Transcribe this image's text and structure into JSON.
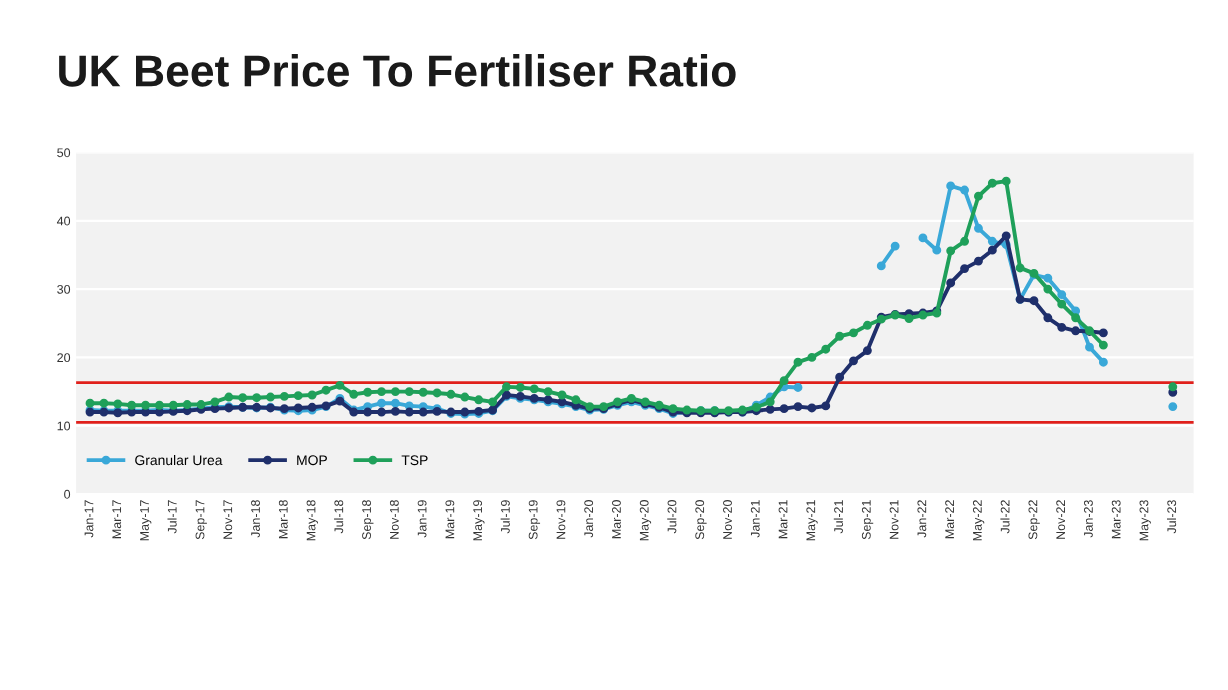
{
  "chart_data": {
    "type": "line",
    "title": "UK Beet Price To Fertiliser Ratio",
    "categories": [
      "Jan-17",
      null,
      "Mar-17",
      null,
      "May-17",
      null,
      "Jul-17",
      null,
      "Sep-17",
      null,
      "Nov-17",
      null,
      "Jan-18",
      null,
      "Mar-18",
      null,
      "May-18",
      null,
      "Jul-18",
      null,
      "Sep-18",
      null,
      "Nov-18",
      null,
      "Jan-19",
      null,
      "Mar-19",
      null,
      "May-19",
      null,
      "Jul-19",
      null,
      "Sep-19",
      null,
      "Nov-19",
      null,
      "Jan-20",
      null,
      "Mar-20",
      null,
      "May-20",
      null,
      "Jul-20",
      null,
      "Sep-20",
      null,
      "Nov-20",
      null,
      "Jan-21",
      null,
      "Mar-21",
      null,
      "May-21",
      null,
      "Jul-21",
      null,
      "Sep-21",
      null,
      "Nov-21",
      null,
      "Jan-22",
      null,
      "Mar-22",
      null,
      "May-22",
      null,
      "Jul-22",
      null,
      "Sep-22",
      null,
      "Nov-22",
      null,
      "Jan-23",
      null,
      "Mar-23",
      null,
      "May-23",
      null,
      "Jul-23"
    ],
    "series": [
      {
        "name": "Granular Urea",
        "color": "#3aa8d8",
        "values": [
          12.3,
          12.2,
          12.2,
          12.2,
          12.2,
          12.3,
          12.2,
          12.3,
          12.5,
          12.7,
          12.8,
          12.7,
          12.6,
          12.7,
          12.3,
          12.2,
          12.3,
          12.8,
          14.0,
          12.3,
          12.8,
          13.3,
          13.3,
          12.9,
          12.8,
          12.5,
          11.8,
          11.7,
          11.8,
          12.2,
          14.3,
          14.0,
          13.8,
          13.5,
          13.2,
          12.8,
          12.3,
          12.4,
          13.0,
          13.5,
          13.0,
          12.5,
          11.8,
          12.0,
          12.2,
          12.2,
          12.0,
          12.0,
          13.0,
          14.2,
          15.7,
          15.6,
          null,
          null,
          null,
          null,
          null,
          33.4,
          36.3,
          null,
          37.5,
          35.7,
          45.1,
          44.5,
          38.9,
          37.0,
          36.5,
          28.5,
          32.1,
          31.6,
          29.2,
          26.8,
          21.5,
          19.3,
          null,
          null,
          null,
          null,
          12.8
        ]
      },
      {
        "name": "MOP",
        "color": "#1f2f6b",
        "values": [
          12.0,
          12.0,
          11.9,
          12.0,
          12.0,
          12.0,
          12.1,
          12.2,
          12.4,
          12.5,
          12.6,
          12.7,
          12.7,
          12.6,
          12.5,
          12.6,
          12.7,
          12.9,
          13.6,
          12.0,
          12.0,
          12.0,
          12.1,
          12.0,
          12.0,
          12.1,
          12.0,
          12.0,
          12.1,
          12.3,
          14.5,
          14.3,
          14.0,
          13.8,
          13.5,
          13.0,
          12.5,
          12.5,
          13.2,
          13.8,
          13.2,
          12.7,
          12.0,
          11.9,
          11.9,
          11.9,
          12.0,
          12.0,
          12.2,
          12.4,
          12.5,
          12.8,
          12.6,
          12.9,
          17.1,
          19.5,
          21.0,
          25.9,
          26.3,
          26.4,
          26.5,
          26.8,
          30.9,
          33.0,
          34.1,
          35.7,
          37.8,
          28.5,
          28.3,
          25.8,
          24.4,
          23.9,
          23.8,
          23.6,
          null,
          null,
          null,
          null,
          14.9
        ]
      },
      {
        "name": "TSP",
        "color": "#1fa05a",
        "values": [
          13.3,
          13.3,
          13.2,
          13.0,
          13.0,
          13.0,
          13.0,
          13.1,
          13.1,
          13.5,
          14.2,
          14.1,
          14.1,
          14.2,
          14.3,
          14.4,
          14.5,
          15.2,
          15.9,
          14.6,
          14.9,
          15.0,
          15.0,
          15.0,
          14.9,
          14.8,
          14.6,
          14.2,
          13.8,
          13.5,
          15.7,
          15.6,
          15.4,
          15.0,
          14.5,
          13.8,
          12.8,
          12.8,
          13.5,
          14.0,
          13.5,
          13.0,
          12.5,
          12.3,
          12.2,
          12.2,
          12.2,
          12.3,
          12.7,
          13.5,
          16.6,
          19.3,
          20.0,
          21.2,
          23.1,
          23.6,
          24.7,
          25.6,
          26.2,
          25.7,
          26.2,
          26.5,
          35.6,
          37.0,
          43.6,
          45.5,
          45.8,
          33.1,
          32.3,
          30.0,
          27.8,
          25.8,
          23.9,
          21.8,
          null,
          null,
          null,
          null,
          15.7
        ]
      }
    ],
    "ylim": [
      0,
      50
    ],
    "yticks": [
      0,
      10,
      20,
      30,
      40,
      50
    ],
    "grid": "y",
    "legend": "bottom left",
    "marker": "circle",
    "line_style": "solid",
    "ref_lines": [
      {
        "axis": "y",
        "value": 16.3,
        "color": "#e0201b"
      },
      {
        "axis": "y",
        "value": 10.5,
        "color": "#e0201b"
      }
    ]
  }
}
